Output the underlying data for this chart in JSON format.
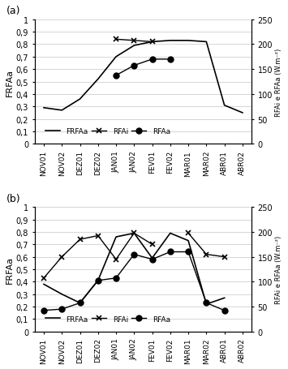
{
  "categories": [
    "NOV01",
    "NOV02",
    "DEZ01",
    "DEZ02",
    "JAN01",
    "JAN02",
    "FEV01",
    "FEV02",
    "MAR01",
    "MAR02",
    "ABR01",
    "ABR02"
  ],
  "a_FRFAa": [
    0.29,
    0.27,
    0.36,
    0.52,
    0.7,
    0.79,
    0.82,
    0.83,
    0.83,
    0.82,
    0.31,
    0.25
  ],
  "a_RFAi": [
    null,
    null,
    null,
    null,
    0.84,
    0.83,
    0.82,
    null,
    null,
    null,
    null,
    null
  ],
  "a_RFAa": [
    null,
    null,
    null,
    null,
    0.55,
    0.63,
    0.68,
    0.68,
    null,
    null,
    null,
    null
  ],
  "b_FRFAa": [
    0.38,
    0.3,
    0.23,
    0.41,
    0.76,
    0.79,
    0.59,
    0.79,
    0.73,
    0.22,
    0.27,
    null
  ],
  "b_RFAi": [
    0.43,
    0.6,
    0.74,
    0.77,
    0.58,
    0.79,
    0.7,
    null,
    0.79,
    0.62,
    0.6,
    null
  ],
  "b_RFAa": [
    0.17,
    0.18,
    0.23,
    0.41,
    0.43,
    0.62,
    0.58,
    0.64,
    0.64,
    0.23,
    0.17,
    null
  ],
  "line_color": "#000000",
  "bg_color": "#ffffff",
  "grid_color": "#d0d0d0",
  "ylabel_left": "FRFAa",
  "ylabel_right": "RFAi e RFAa (W.m⁻²)",
  "ylim_left": [
    0,
    1.0
  ],
  "ylim_right": [
    0,
    250
  ],
  "yticks_left": [
    0,
    0.1,
    0.2,
    0.3,
    0.4,
    0.5,
    0.6,
    0.7,
    0.8,
    0.9,
    1.0
  ],
  "ytick_labels_left": [
    "0",
    "0,1",
    "0,2",
    "0,3",
    "0,4",
    "0,5",
    "0,6",
    "0,7",
    "0,8",
    "0,9",
    "1"
  ],
  "yticks_right": [
    0,
    50,
    100,
    150,
    200,
    250
  ],
  "ytick_labels_right": [
    "0",
    "50",
    "100",
    "150",
    "200",
    "250"
  ],
  "legend_labels": [
    "FRFAa",
    "RFAi",
    "RFAa"
  ],
  "label_a": "(a)",
  "label_b": "(b)"
}
